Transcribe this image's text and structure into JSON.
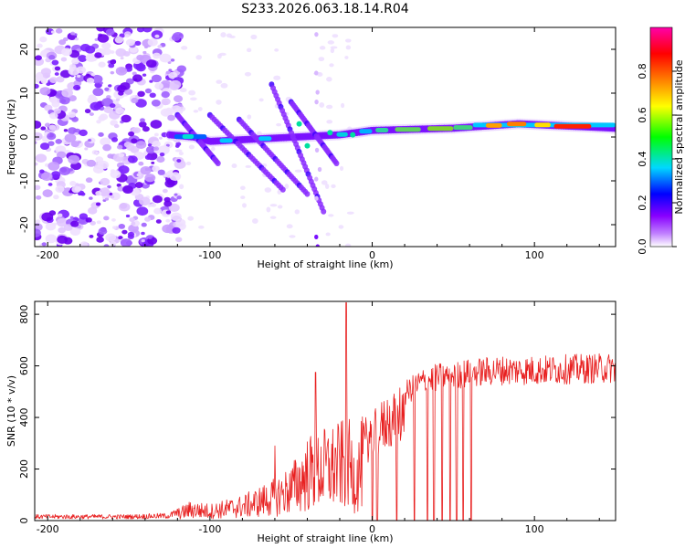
{
  "figure_title": "S233.2026.063.18.14.R04",
  "chart_data": [
    {
      "type": "heatmap",
      "title": "S233.2026.063.18.14.R04",
      "xlabel": "Height of straight line (km)",
      "ylabel": "Frequency (Hz)",
      "xlim": [
        -208,
        150
      ],
      "ylim": [
        -25,
        25
      ],
      "xticks": [
        -200,
        -100,
        0,
        100
      ],
      "xtick_labels": [
        "-200",
        "-100",
        "0",
        "100"
      ],
      "yticks": [
        -20,
        -10,
        0,
        10,
        20
      ],
      "ytick_labels": [
        "-20",
        "-10",
        "0",
        "10",
        "20"
      ],
      "colorbar": {
        "label": "Normalized spectral amplitude",
        "range": [
          0,
          1
        ],
        "ticks": [
          0.0,
          0.2,
          0.4,
          0.6,
          0.8
        ],
        "tick_labels": [
          "0.0",
          "0.2",
          "0.4",
          "0.6",
          "0.8"
        ],
        "colors": [
          "#ffffff",
          "#8800ff",
          "#0000ff",
          "#00d8ff",
          "#00ff00",
          "#ffff00",
          "#ff7f00",
          "#ff0000",
          "#ff00aa"
        ]
      },
      "description_of_features": {
        "noise_region_km": [
          -208,
          -125
        ],
        "tone_track": [
          {
            "x": -125,
            "y": 0.5
          },
          {
            "x": -110,
            "y": 0.0
          },
          {
            "x": -100,
            "y": -1.0
          },
          {
            "x": -20,
            "y": 0.5
          },
          {
            "x": 0,
            "y": 1.5
          },
          {
            "x": 50,
            "y": 2.0
          },
          {
            "x": 90,
            "y": 3.0
          },
          {
            "x": 150,
            "y": 2.0
          }
        ],
        "peak_amplitude_region_km": [
          60,
          150
        ]
      }
    },
    {
      "type": "line",
      "xlabel": "Height of straight line (km)",
      "ylabel": "SNR (10 * v/v)",
      "xlim": [
        -208,
        150
      ],
      "ylim": [
        0,
        850
      ],
      "xticks": [
        -200,
        -100,
        0,
        100
      ],
      "xtick_labels": [
        "-200",
        "-100",
        "0",
        "100"
      ],
      "yticks": [
        0,
        200,
        400,
        600,
        800
      ],
      "ytick_labels": [
        "0",
        "200",
        "400",
        "600",
        "800"
      ],
      "color": "#e82020",
      "envelope": [
        {
          "x": -208,
          "y": 20
        },
        {
          "x": -150,
          "y": 20
        },
        {
          "x": -125,
          "y": 25
        },
        {
          "x": -112,
          "y": 70
        },
        {
          "x": -100,
          "y": 60
        },
        {
          "x": -80,
          "y": 90
        },
        {
          "x": -60,
          "y": 150
        },
        {
          "x": -50,
          "y": 200
        },
        {
          "x": -40,
          "y": 300
        },
        {
          "x": -30,
          "y": 330
        },
        {
          "x": -20,
          "y": 350
        },
        {
          "x": -15,
          "y": 380
        },
        {
          "x": -10,
          "y": 260
        },
        {
          "x": -5,
          "y": 400
        },
        {
          "x": 0,
          "y": 420
        },
        {
          "x": 10,
          "y": 500
        },
        {
          "x": 20,
          "y": 540
        },
        {
          "x": 30,
          "y": 590
        },
        {
          "x": 40,
          "y": 610
        },
        {
          "x": 50,
          "y": 620
        },
        {
          "x": 60,
          "y": 630
        },
        {
          "x": 80,
          "y": 640
        },
        {
          "x": 100,
          "y": 640
        },
        {
          "x": 120,
          "y": 645
        },
        {
          "x": 150,
          "y": 650
        }
      ],
      "notable_spikes": [
        {
          "x": -16,
          "y": 845
        },
        {
          "x": -35,
          "y": 575
        },
        {
          "x": -60,
          "y": 290
        }
      ],
      "dropouts_to_zero_km": [
        0,
        3,
        15,
        26,
        34,
        38,
        43,
        48,
        52,
        56,
        61
      ]
    }
  ]
}
